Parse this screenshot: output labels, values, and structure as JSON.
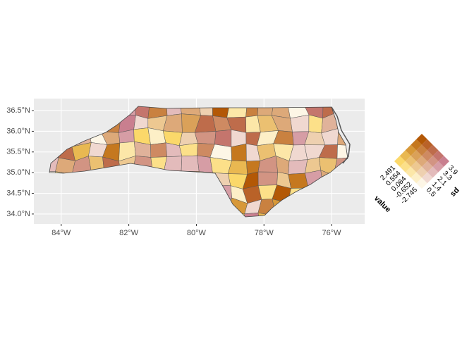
{
  "chart_data": {
    "type": "map",
    "xlim": [
      -84.81,
      -75.02
    ],
    "ylim": [
      33.76,
      36.79
    ],
    "xticks": [
      {
        "value": -84,
        "label": "84°W"
      },
      {
        "value": -82,
        "label": "82°W"
      },
      {
        "value": -80,
        "label": "80°W"
      },
      {
        "value": -78,
        "label": "78°W"
      },
      {
        "value": -76,
        "label": "76°W"
      }
    ],
    "yticks": [
      {
        "value": 34,
        "label": "34.0°N"
      },
      {
        "value": 34.5,
        "label": "34.5°N"
      },
      {
        "value": 35,
        "label": "35.0°N"
      },
      {
        "value": 35.5,
        "label": "35.5°N"
      },
      {
        "value": 36,
        "label": "36.0°N"
      },
      {
        "value": 36.5,
        "label": "36.5°N"
      }
    ],
    "grid": true,
    "legend": {
      "x_title": "value",
      "y_title": "sd",
      "value_breaks": [
        2.491,
        0.554,
        0.064,
        -0.652,
        -2.745
      ],
      "sd_breaks": [
        3.9,
        3.3,
        2.1,
        1.4,
        0.5
      ]
    }
  }
}
